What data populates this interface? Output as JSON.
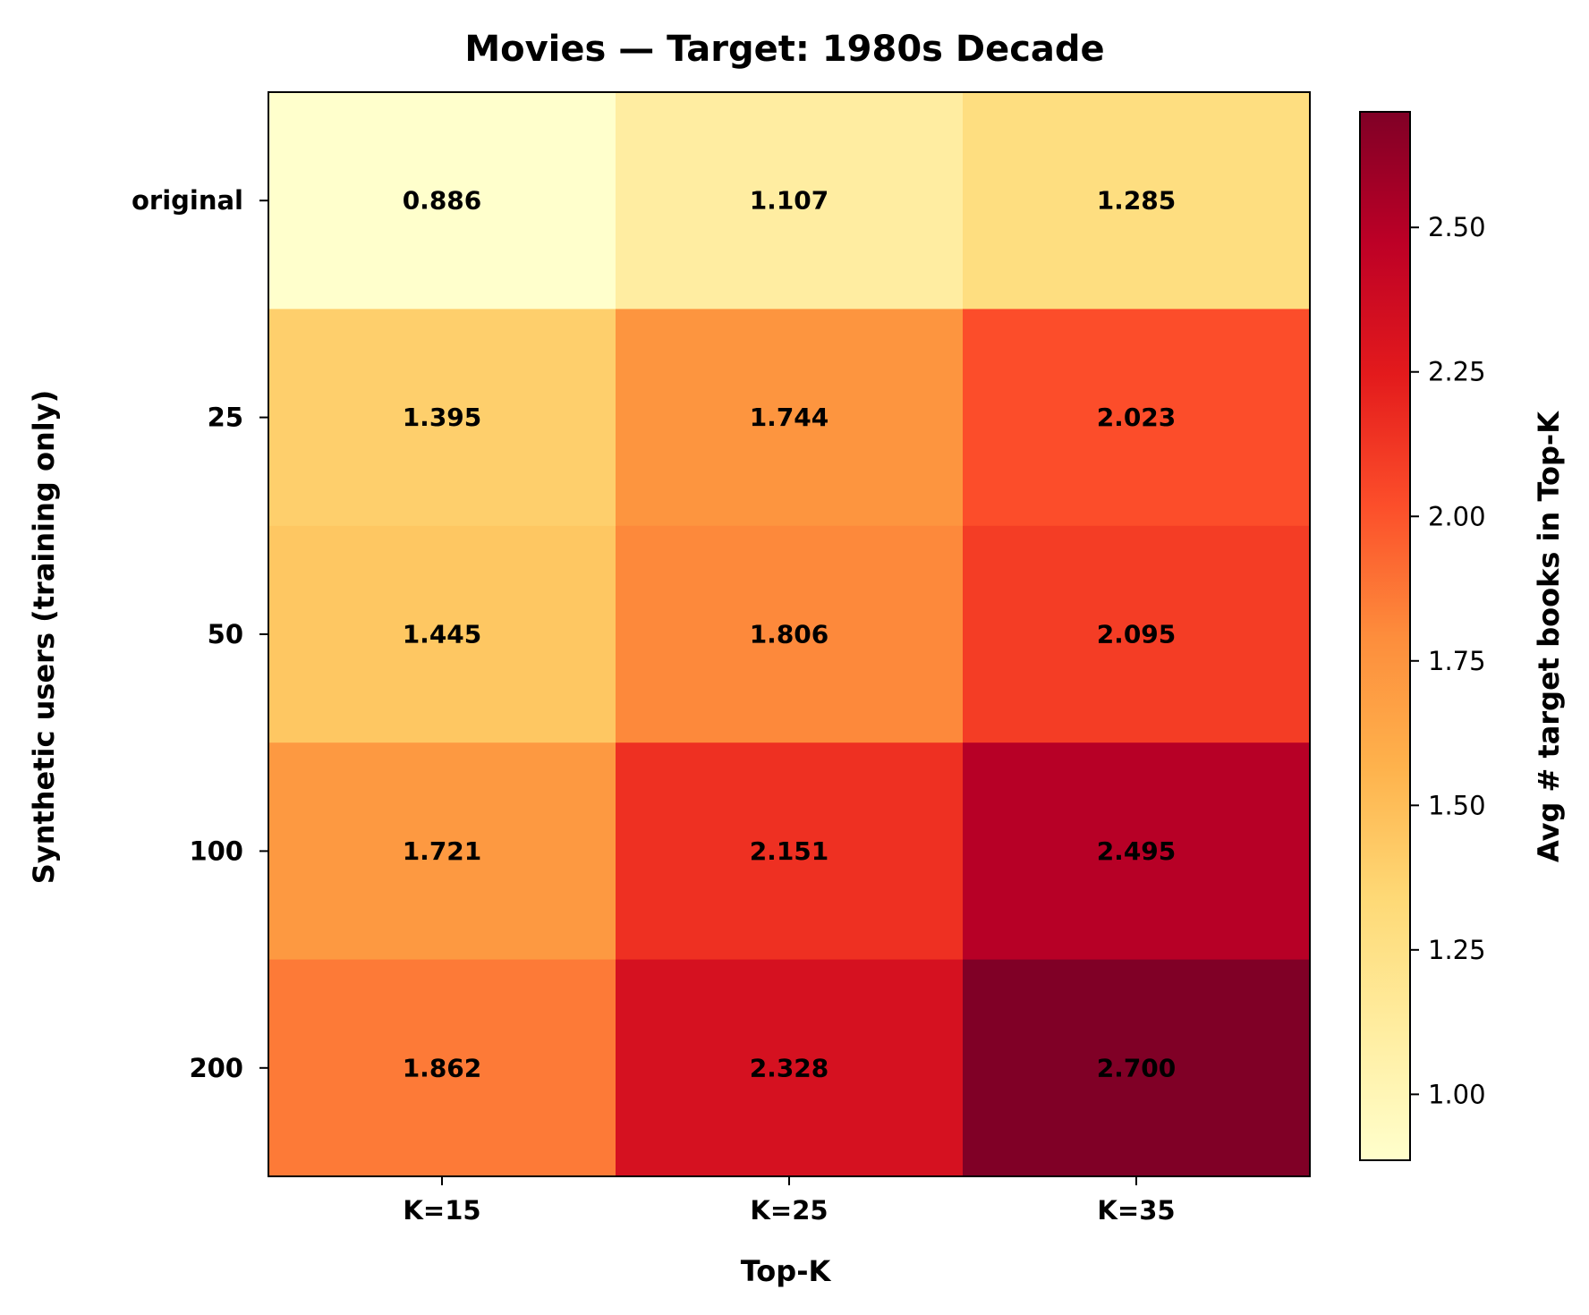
{
  "chart_data": {
    "type": "heatmap",
    "title": "Movies — Target: 1980s Decade",
    "xlabel": "Top-K",
    "ylabel": "Synthetic users (training only)",
    "x_categories": [
      "K=15",
      "K=25",
      "K=35"
    ],
    "y_categories": [
      "original",
      "25",
      "50",
      "100",
      "200"
    ],
    "values": [
      [
        0.886,
        1.107,
        1.285
      ],
      [
        1.395,
        1.744,
        2.023
      ],
      [
        1.445,
        1.806,
        2.095
      ],
      [
        1.721,
        2.151,
        2.495
      ],
      [
        1.862,
        2.328,
        2.7
      ]
    ],
    "value_labels": [
      [
        "0.886",
        "1.107",
        "1.285"
      ],
      [
        "1.395",
        "1.744",
        "2.023"
      ],
      [
        "1.445",
        "1.806",
        "2.095"
      ],
      [
        "1.721",
        "2.151",
        "2.495"
      ],
      [
        "1.862",
        "2.328",
        "2.700"
      ]
    ],
    "colorbar": {
      "label": "Avg # target books in Top-K",
      "range": [
        0.886,
        2.7
      ],
      "ticks": [
        1.0,
        1.25,
        1.5,
        1.75,
        2.0,
        2.25,
        2.5
      ],
      "tick_labels": [
        "1.00",
        "1.25",
        "1.50",
        "1.75",
        "2.00",
        "2.25",
        "2.50"
      ],
      "colormap": "YlOrRd"
    },
    "colormap_stops": [
      "#ffffcc",
      "#ffeda0",
      "#fed976",
      "#feb24c",
      "#fd8d3c",
      "#fc4e2a",
      "#e31a1c",
      "#bd0026",
      "#800026"
    ]
  }
}
